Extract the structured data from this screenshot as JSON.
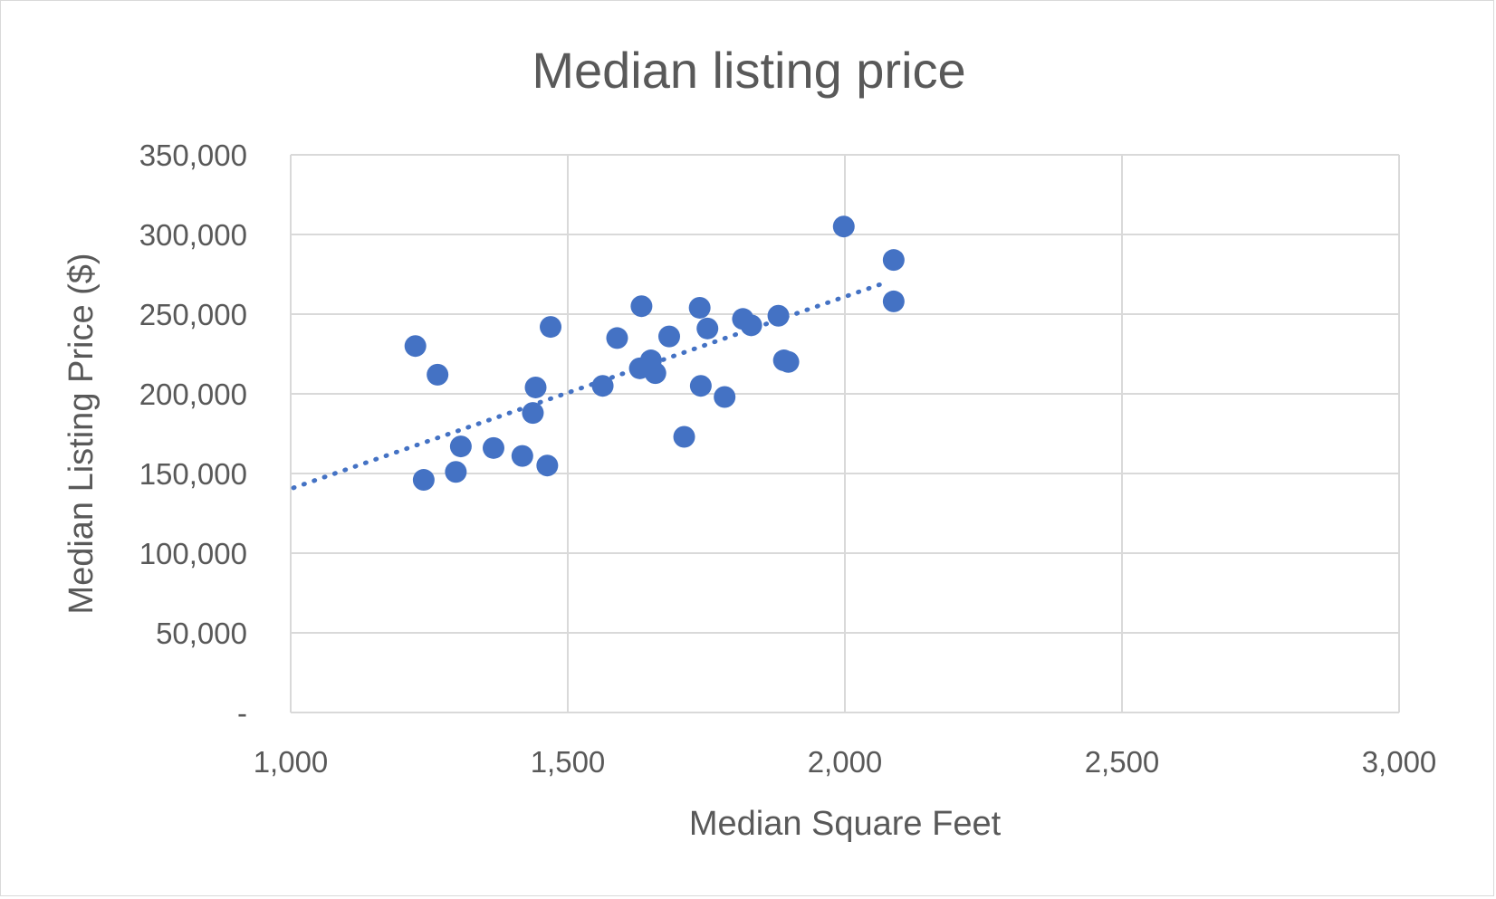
{
  "chart_data": {
    "type": "scatter",
    "title": "Median listing price",
    "xlabel": "Median Square Feet",
    "ylabel": "Median Listing Price ($)",
    "xlim": [
      1000,
      3000
    ],
    "ylim": [
      0,
      350000
    ],
    "x_ticks": [
      1000,
      1500,
      2000,
      2500,
      3000
    ],
    "x_tick_labels": [
      "1,000",
      "1,500",
      "2,000",
      "2,500",
      "3,000"
    ],
    "y_ticks": [
      0,
      50000,
      100000,
      150000,
      200000,
      250000,
      300000,
      350000
    ],
    "y_tick_labels": [
      "-",
      "50,000",
      "100,000",
      "150,000",
      "200,000",
      "250,000",
      "300,000",
      "350,000"
    ],
    "grid": true,
    "series": [
      {
        "color": "#4472c4",
        "points": [
          {
            "x": 1225,
            "y": 230000
          },
          {
            "x": 1265,
            "y": 212000
          },
          {
            "x": 1240,
            "y": 146000
          },
          {
            "x": 1298,
            "y": 151000
          },
          {
            "x": 1307,
            "y": 167000
          },
          {
            "x": 1366,
            "y": 166000
          },
          {
            "x": 1418,
            "y": 161000
          },
          {
            "x": 1437,
            "y": 188000
          },
          {
            "x": 1442,
            "y": 204000
          },
          {
            "x": 1463,
            "y": 155000
          },
          {
            "x": 1469,
            "y": 242000
          },
          {
            "x": 1563,
            "y": 205000
          },
          {
            "x": 1589,
            "y": 235000
          },
          {
            "x": 1630,
            "y": 216000
          },
          {
            "x": 1633,
            "y": 255000
          },
          {
            "x": 1650,
            "y": 221000
          },
          {
            "x": 1658,
            "y": 213000
          },
          {
            "x": 1683,
            "y": 236000
          },
          {
            "x": 1710,
            "y": 173000
          },
          {
            "x": 1738,
            "y": 254000
          },
          {
            "x": 1740,
            "y": 205000
          },
          {
            "x": 1752,
            "y": 241000
          },
          {
            "x": 1783,
            "y": 198000
          },
          {
            "x": 1816,
            "y": 247000
          },
          {
            "x": 1831,
            "y": 243000
          },
          {
            "x": 1880,
            "y": 249000
          },
          {
            "x": 1890,
            "y": 221000
          },
          {
            "x": 1898,
            "y": 220000
          },
          {
            "x": 1998,
            "y": 305000
          },
          {
            "x": 2088,
            "y": 284000
          },
          {
            "x": 2088,
            "y": 258000
          }
        ]
      }
    ],
    "trendline": {
      "style": "dotted",
      "x": [
        1005,
        2075
      ],
      "y": [
        141000,
        270000
      ]
    }
  }
}
